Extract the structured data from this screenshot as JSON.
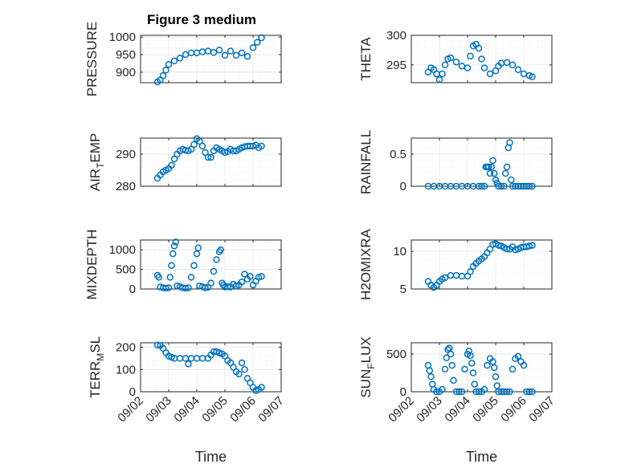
{
  "figure": {
    "title": "Figure 3 medium",
    "marker_color": "#0072BD",
    "axis_color": "#262626"
  },
  "chart_data": [
    {
      "type": "scatter",
      "id": "pressure",
      "ylabel": "PRESSURE",
      "ylabel_sub": "",
      "ylabel_tail": "",
      "xlabel": "",
      "xlim": [
        0,
        5
      ],
      "ylim": [
        870,
        1005
      ],
      "yticks": [
        900,
        950,
        1000
      ],
      "xticks": [
        0,
        1,
        2,
        3,
        4,
        5
      ],
      "xtick_labels": [
        "09/02",
        "09/03",
        "09/04",
        "09/05",
        "09/06",
        "09/07"
      ],
      "show_xticklabels": false,
      "grid": true,
      "x": [
        0.6,
        0.7,
        0.8,
        0.9,
        1.0,
        1.2,
        1.4,
        1.6,
        1.8,
        2.0,
        2.2,
        2.4,
        2.6,
        2.8,
        3.0,
        3.2,
        3.4,
        3.6,
        3.8,
        4.0,
        4.15,
        4.3
      ],
      "y": [
        872,
        878,
        890,
        906,
        922,
        932,
        940,
        950,
        955,
        955,
        958,
        960,
        956,
        963,
        948,
        960,
        948,
        955,
        945,
        970,
        985,
        998
      ]
    },
    {
      "type": "scatter",
      "id": "theta",
      "ylabel": "THETA",
      "ylabel_sub": "",
      "ylabel_tail": "",
      "xlabel": "",
      "xlim": [
        0,
        5
      ],
      "ylim": [
        292,
        300
      ],
      "yticks": [
        295,
        300
      ],
      "xticks": [
        0,
        1,
        2,
        3,
        4,
        5
      ],
      "xtick_labels": [
        "09/02",
        "09/03",
        "09/04",
        "09/05",
        "09/06",
        "09/07"
      ],
      "show_xticklabels": false,
      "grid": true,
      "x": [
        0.6,
        0.7,
        0.8,
        0.9,
        1.0,
        1.1,
        1.2,
        1.3,
        1.4,
        1.6,
        1.8,
        2.0,
        2.1,
        2.2,
        2.3,
        2.4,
        2.5,
        2.6,
        2.8,
        3.0,
        3.1,
        3.2,
        3.4,
        3.6,
        3.8,
        4.0,
        4.2,
        4.3
      ],
      "y": [
        293.8,
        294.5,
        294.2,
        293.5,
        292.5,
        293.5,
        295,
        296,
        296.2,
        295.5,
        294.8,
        294.5,
        296.5,
        298.2,
        298.5,
        297.8,
        296,
        294.5,
        293.5,
        294,
        294.8,
        295.3,
        295.4,
        295,
        294.2,
        293.5,
        293.2,
        293
      ]
    },
    {
      "type": "scatter",
      "id": "air_temp",
      "ylabel": "AIR",
      "ylabel_sub": "T",
      "ylabel_tail": "EMP",
      "xlabel": "",
      "xlim": [
        0,
        5
      ],
      "ylim": [
        280,
        295
      ],
      "yticks": [
        280,
        290
      ],
      "xticks": [
        0,
        1,
        2,
        3,
        4,
        5
      ],
      "xtick_labels": [
        "09/02",
        "09/03",
        "09/04",
        "09/05",
        "09/06",
        "09/07"
      ],
      "show_xticklabels": false,
      "grid": true,
      "x": [
        0.6,
        0.7,
        0.8,
        0.9,
        1.0,
        1.1,
        1.2,
        1.3,
        1.4,
        1.5,
        1.6,
        1.7,
        1.8,
        1.9,
        2.0,
        2.1,
        2.2,
        2.3,
        2.4,
        2.5,
        2.6,
        2.7,
        2.8,
        2.9,
        3.0,
        3.1,
        3.2,
        3.3,
        3.4,
        3.5,
        3.6,
        3.7,
        3.8,
        3.9,
        4.0,
        4.1,
        4.2,
        4.3
      ],
      "y": [
        282.5,
        283.5,
        284.5,
        285,
        285.5,
        286.5,
        288.5,
        290,
        291,
        291.5,
        291.2,
        291,
        291.5,
        293,
        294.8,
        294,
        292.5,
        290.5,
        289,
        289,
        291,
        292,
        291.5,
        291,
        290.5,
        290.8,
        291.5,
        291,
        291,
        291.5,
        292,
        292.3,
        292.5,
        292.5,
        292.5,
        292.8,
        292,
        292.5
      ]
    },
    {
      "type": "scatter",
      "id": "rainfall",
      "ylabel": "RAINFALL",
      "ylabel_sub": "",
      "ylabel_tail": "",
      "xlabel": "",
      "xlim": [
        0,
        5
      ],
      "ylim": [
        0,
        0.75
      ],
      "yticks": [
        0,
        0.5
      ],
      "xticks": [
        0,
        1,
        2,
        3,
        4,
        5
      ],
      "xtick_labels": [
        "09/02",
        "09/03",
        "09/04",
        "09/05",
        "09/06",
        "09/07"
      ],
      "show_xticklabels": false,
      "grid": true,
      "x": [
        0.6,
        0.8,
        1.0,
        1.2,
        1.4,
        1.6,
        1.8,
        2.0,
        2.2,
        2.4,
        2.5,
        2.6,
        2.65,
        2.7,
        2.75,
        2.8,
        2.85,
        2.9,
        2.95,
        3.0,
        3.05,
        3.1,
        3.2,
        3.3,
        3.35,
        3.4,
        3.45,
        3.5,
        3.55,
        3.6,
        3.7,
        3.8,
        3.9,
        4.0,
        4.1,
        4.2,
        4.3
      ],
      "y": [
        0,
        0,
        0,
        0,
        0,
        0,
        0,
        0,
        0,
        0,
        0,
        0,
        0.3,
        0.3,
        0.3,
        0.2,
        0.3,
        0.4,
        0.2,
        0.1,
        0.05,
        0,
        0,
        0,
        0.2,
        0.3,
        0.6,
        0.68,
        0.1,
        0,
        0,
        0,
        0,
        0,
        0,
        0,
        0
      ]
    },
    {
      "type": "scatter",
      "id": "mixdepth",
      "ylabel": "MIXDEPTH",
      "ylabel_sub": "",
      "ylabel_tail": "",
      "xlabel": "",
      "xlim": [
        0,
        5
      ],
      "ylim": [
        0,
        1250
      ],
      "yticks": [
        0,
        500,
        1000
      ],
      "xticks": [
        0,
        1,
        2,
        3,
        4,
        5
      ],
      "xtick_labels": [
        "09/02",
        "09/03",
        "09/04",
        "09/05",
        "09/06",
        "09/07"
      ],
      "show_xticklabels": false,
      "grid": true,
      "x": [
        0.6,
        0.65,
        0.7,
        0.8,
        0.9,
        1.0,
        1.05,
        1.1,
        1.15,
        1.2,
        1.25,
        1.3,
        1.4,
        1.5,
        1.6,
        1.7,
        1.8,
        1.9,
        2.0,
        2.05,
        2.1,
        2.2,
        2.3,
        2.4,
        2.5,
        2.6,
        2.7,
        2.8,
        2.85,
        2.9,
        2.95,
        3.0,
        3.1,
        3.2,
        3.3,
        3.4,
        3.5,
        3.6,
        3.7,
        3.8,
        3.9,
        4.0,
        4.1,
        4.2,
        4.3
      ],
      "y": [
        350,
        300,
        50,
        30,
        20,
        30,
        300,
        600,
        900,
        1100,
        1200,
        80,
        60,
        30,
        20,
        30,
        300,
        600,
        900,
        1050,
        80,
        60,
        30,
        40,
        150,
        450,
        750,
        950,
        1000,
        150,
        100,
        50,
        60,
        50,
        120,
        80,
        100,
        180,
        380,
        250,
        320,
        100,
        200,
        300,
        320
      ]
    },
    {
      "type": "scatter",
      "id": "h2omixra",
      "ylabel": "H2OMIXRA",
      "ylabel_sub": "",
      "ylabel_tail": "",
      "xlabel": "",
      "xlim": [
        0,
        5
      ],
      "ylim": [
        5,
        11.5
      ],
      "yticks": [
        5,
        10
      ],
      "xticks": [
        0,
        1,
        2,
        3,
        4,
        5
      ],
      "xtick_labels": [
        "09/02",
        "09/03",
        "09/04",
        "09/05",
        "09/06",
        "09/07"
      ],
      "show_xticklabels": false,
      "grid": true,
      "x": [
        0.6,
        0.7,
        0.8,
        0.9,
        1.0,
        1.1,
        1.2,
        1.4,
        1.6,
        1.8,
        2.0,
        2.1,
        2.2,
        2.3,
        2.4,
        2.5,
        2.6,
        2.7,
        2.8,
        2.9,
        3.0,
        3.1,
        3.2,
        3.3,
        3.4,
        3.5,
        3.6,
        3.7,
        3.8,
        3.9,
        4.0,
        4.1,
        4.2,
        4.3
      ],
      "y": [
        6,
        5.5,
        5.2,
        5.5,
        6,
        6.3,
        6.5,
        6.8,
        6.8,
        6.7,
        6.7,
        7.3,
        8,
        8.4,
        8.7,
        9,
        9.3,
        9.8,
        10.3,
        10.9,
        11,
        10.8,
        10.7,
        10.5,
        10.3,
        10.3,
        10.6,
        10.2,
        10.3,
        10.5,
        10.6,
        10.6,
        10.7,
        10.8
      ]
    },
    {
      "type": "scatter",
      "id": "terr_msl",
      "ylabel": "TERR",
      "ylabel_sub": "M",
      "ylabel_tail": "SL",
      "xlabel": "Time",
      "xlim": [
        0,
        5
      ],
      "ylim": [
        0,
        220
      ],
      "yticks": [
        0,
        100,
        200
      ],
      "xticks": [
        0,
        1,
        2,
        3,
        4,
        5
      ],
      "xtick_labels": [
        "09/02",
        "09/03",
        "09/04",
        "09/05",
        "09/06",
        "09/07"
      ],
      "show_xticklabels": true,
      "grid": true,
      "x": [
        0.6,
        0.7,
        0.8,
        0.9,
        1.0,
        1.1,
        1.2,
        1.4,
        1.6,
        1.7,
        1.8,
        2.0,
        2.2,
        2.4,
        2.5,
        2.6,
        2.7,
        2.8,
        2.9,
        3.0,
        3.1,
        3.2,
        3.3,
        3.4,
        3.5,
        3.6,
        3.7,
        3.8,
        3.9,
        4.0,
        4.1,
        4.2,
        4.3
      ],
      "y": [
        210,
        208,
        195,
        175,
        160,
        155,
        150,
        150,
        150,
        125,
        150,
        150,
        150,
        150,
        165,
        180,
        180,
        175,
        170,
        160,
        140,
        130,
        110,
        90,
        80,
        130,
        100,
        60,
        40,
        20,
        5,
        10,
        20
      ]
    },
    {
      "type": "scatter",
      "id": "sun_flux",
      "ylabel": "SUN",
      "ylabel_sub": "F",
      "ylabel_tail": "LUX",
      "xlabel": "Time",
      "xlim": [
        0,
        5
      ],
      "ylim": [
        0,
        650
      ],
      "yticks": [
        0,
        500
      ],
      "xticks": [
        0,
        1,
        2,
        3,
        4,
        5
      ],
      "xtick_labels": [
        "09/02",
        "09/03",
        "09/04",
        "09/05",
        "09/06",
        "09/07"
      ],
      "show_xticklabels": true,
      "grid": true,
      "x": [
        0.6,
        0.65,
        0.7,
        0.75,
        0.8,
        0.9,
        1.0,
        1.1,
        1.2,
        1.25,
        1.3,
        1.35,
        1.4,
        1.45,
        1.5,
        1.6,
        1.7,
        1.8,
        1.9,
        2.0,
        2.05,
        2.1,
        2.15,
        2.2,
        2.25,
        2.3,
        2.4,
        2.5,
        2.6,
        2.7,
        2.8,
        2.9,
        2.95,
        3.0,
        3.05,
        3.1,
        3.2,
        3.3,
        3.4,
        3.5,
        3.6,
        3.7,
        3.8,
        3.9,
        4.0,
        4.1,
        4.2,
        4.3
      ],
      "y": [
        350,
        280,
        200,
        100,
        30,
        0,
        0,
        30,
        300,
        450,
        560,
        580,
        500,
        350,
        150,
        0,
        0,
        0,
        300,
        500,
        540,
        480,
        380,
        250,
        100,
        0,
        0,
        0,
        30,
        350,
        440,
        400,
        320,
        200,
        80,
        0,
        0,
        0,
        0,
        0,
        300,
        440,
        470,
        400,
        350,
        0,
        0,
        0
      ]
    }
  ]
}
